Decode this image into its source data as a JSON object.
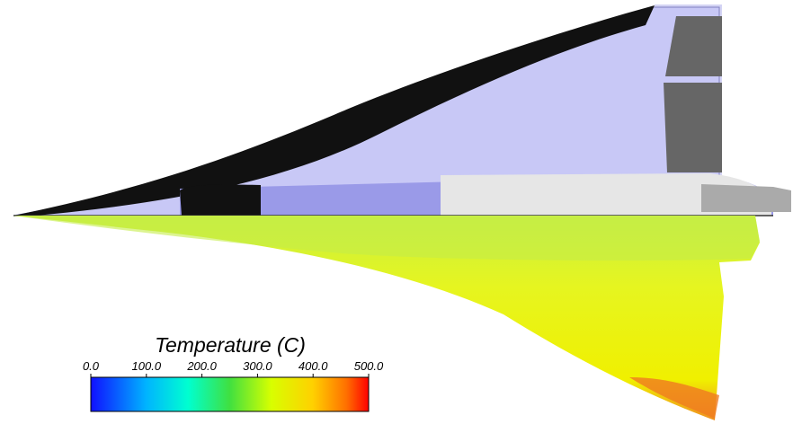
{
  "colorbar": {
    "title": "Temperature (C)",
    "lim": [
      0,
      500
    ],
    "ticks": [
      {
        "value": 0,
        "label": "0.0"
      },
      {
        "value": 100,
        "label": "100.0"
      },
      {
        "value": 200,
        "label": "200.0"
      },
      {
        "value": 300,
        "label": "300.0"
      },
      {
        "value": 400,
        "label": "400.0"
      },
      {
        "value": 500,
        "label": "500.0"
      }
    ]
  }
}
